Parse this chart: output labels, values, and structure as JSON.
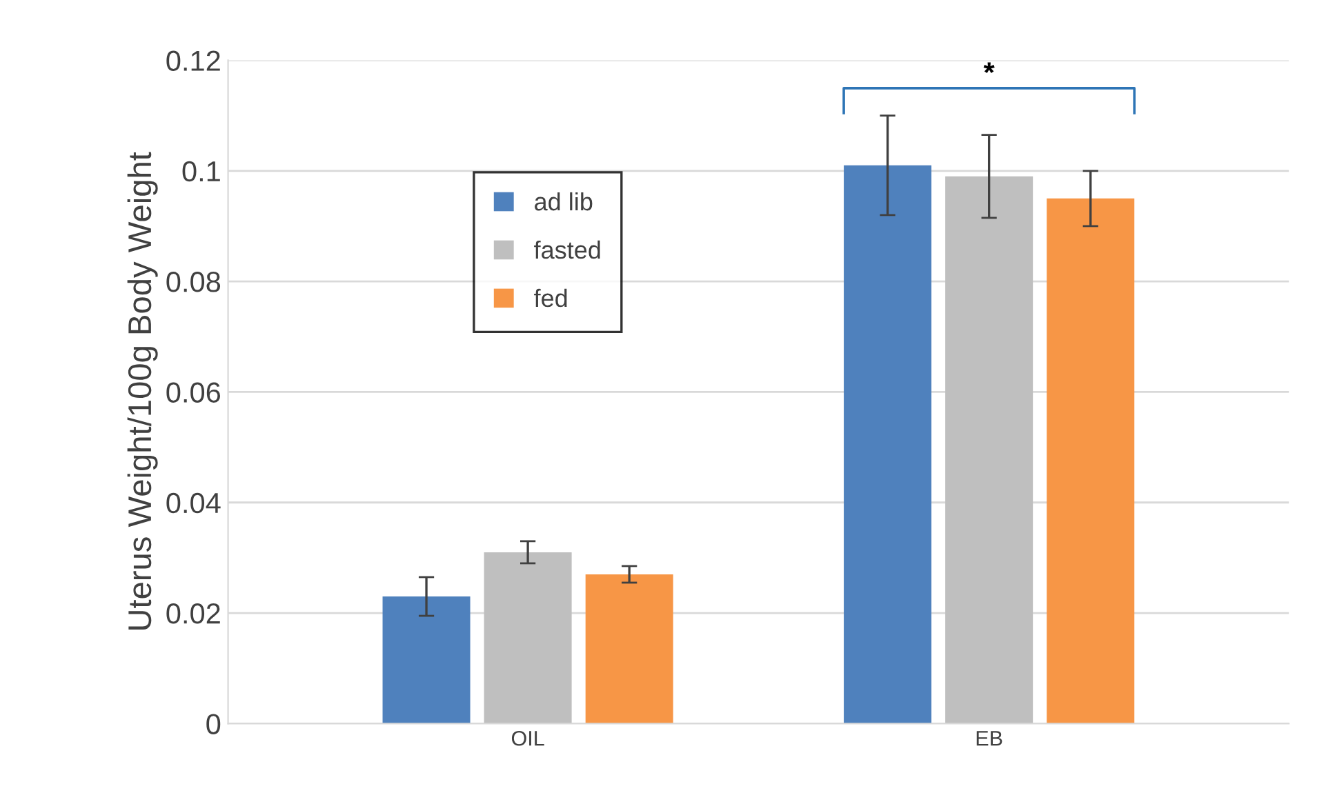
{
  "chart_data": {
    "type": "bar",
    "ylabel": "Uterus Weight/100g Body Weight",
    "categories": [
      "OIL",
      "EB"
    ],
    "series": [
      {
        "name": "ad lib",
        "color": "#4f81bd",
        "values": [
          0.023,
          0.101
        ],
        "errors": [
          0.0035,
          0.009
        ]
      },
      {
        "name": "fasted",
        "color": "#bfbfbf",
        "values": [
          0.031,
          0.099
        ],
        "errors": [
          0.002,
          0.0075
        ]
      },
      {
        "name": "fed",
        "color": "#f79646",
        "values": [
          0.027,
          0.095
        ],
        "errors": [
          0.0015,
          0.005
        ]
      }
    ],
    "annotations": [
      "*"
    ],
    "ylim": [
      0,
      0.12
    ],
    "yticks": [
      0,
      0.02,
      0.04,
      0.06,
      0.08,
      0.1,
      0.12
    ],
    "grid": "y",
    "legend": "top left"
  }
}
